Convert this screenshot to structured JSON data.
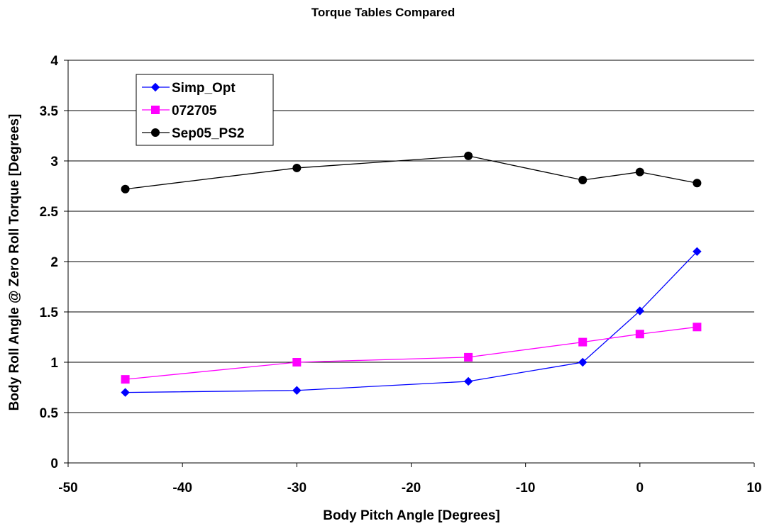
{
  "chart_data": {
    "type": "line",
    "title": "Torque Tables Compared",
    "xlabel": "Body Pitch Angle [Degrees]",
    "ylabel": "Body Roll Angle @ Zero Roll Torque [Degrees]",
    "xlim": [
      -50,
      10
    ],
    "ylim": [
      0,
      4
    ],
    "xticks": [
      -50,
      -40,
      -30,
      -20,
      -10,
      0,
      10
    ],
    "yticks": [
      0,
      0.5,
      1,
      1.5,
      2,
      2.5,
      3,
      3.5,
      4
    ],
    "xtick_labels": [
      "-50",
      "-40",
      "-30",
      "-20",
      "-10",
      "0",
      "10"
    ],
    "ytick_labels": [
      "0",
      "0.5",
      "1",
      "1.5",
      "2",
      "2.5",
      "3",
      "3.5",
      "4"
    ],
    "grid": "horizontal",
    "legend_position": "top-left",
    "series": [
      {
        "name": "Simp_Opt",
        "color": "#0000ff",
        "marker": "diamond",
        "x": [
          -45,
          -30,
          -15,
          -5,
          0,
          5
        ],
        "y": [
          0.7,
          0.72,
          0.81,
          1.0,
          1.51,
          2.1
        ]
      },
      {
        "name": "072705",
        "color": "#ff00ff",
        "marker": "square",
        "x": [
          -45,
          -30,
          -15,
          -5,
          0,
          5
        ],
        "y": [
          0.83,
          1.0,
          1.05,
          1.2,
          1.28,
          1.35
        ]
      },
      {
        "name": "Sep05_PS2",
        "color": "#000000",
        "marker": "circle",
        "x": [
          -45,
          -30,
          -15,
          -5,
          0,
          5
        ],
        "y": [
          2.72,
          2.93,
          3.05,
          2.81,
          2.89,
          2.78
        ]
      }
    ]
  }
}
